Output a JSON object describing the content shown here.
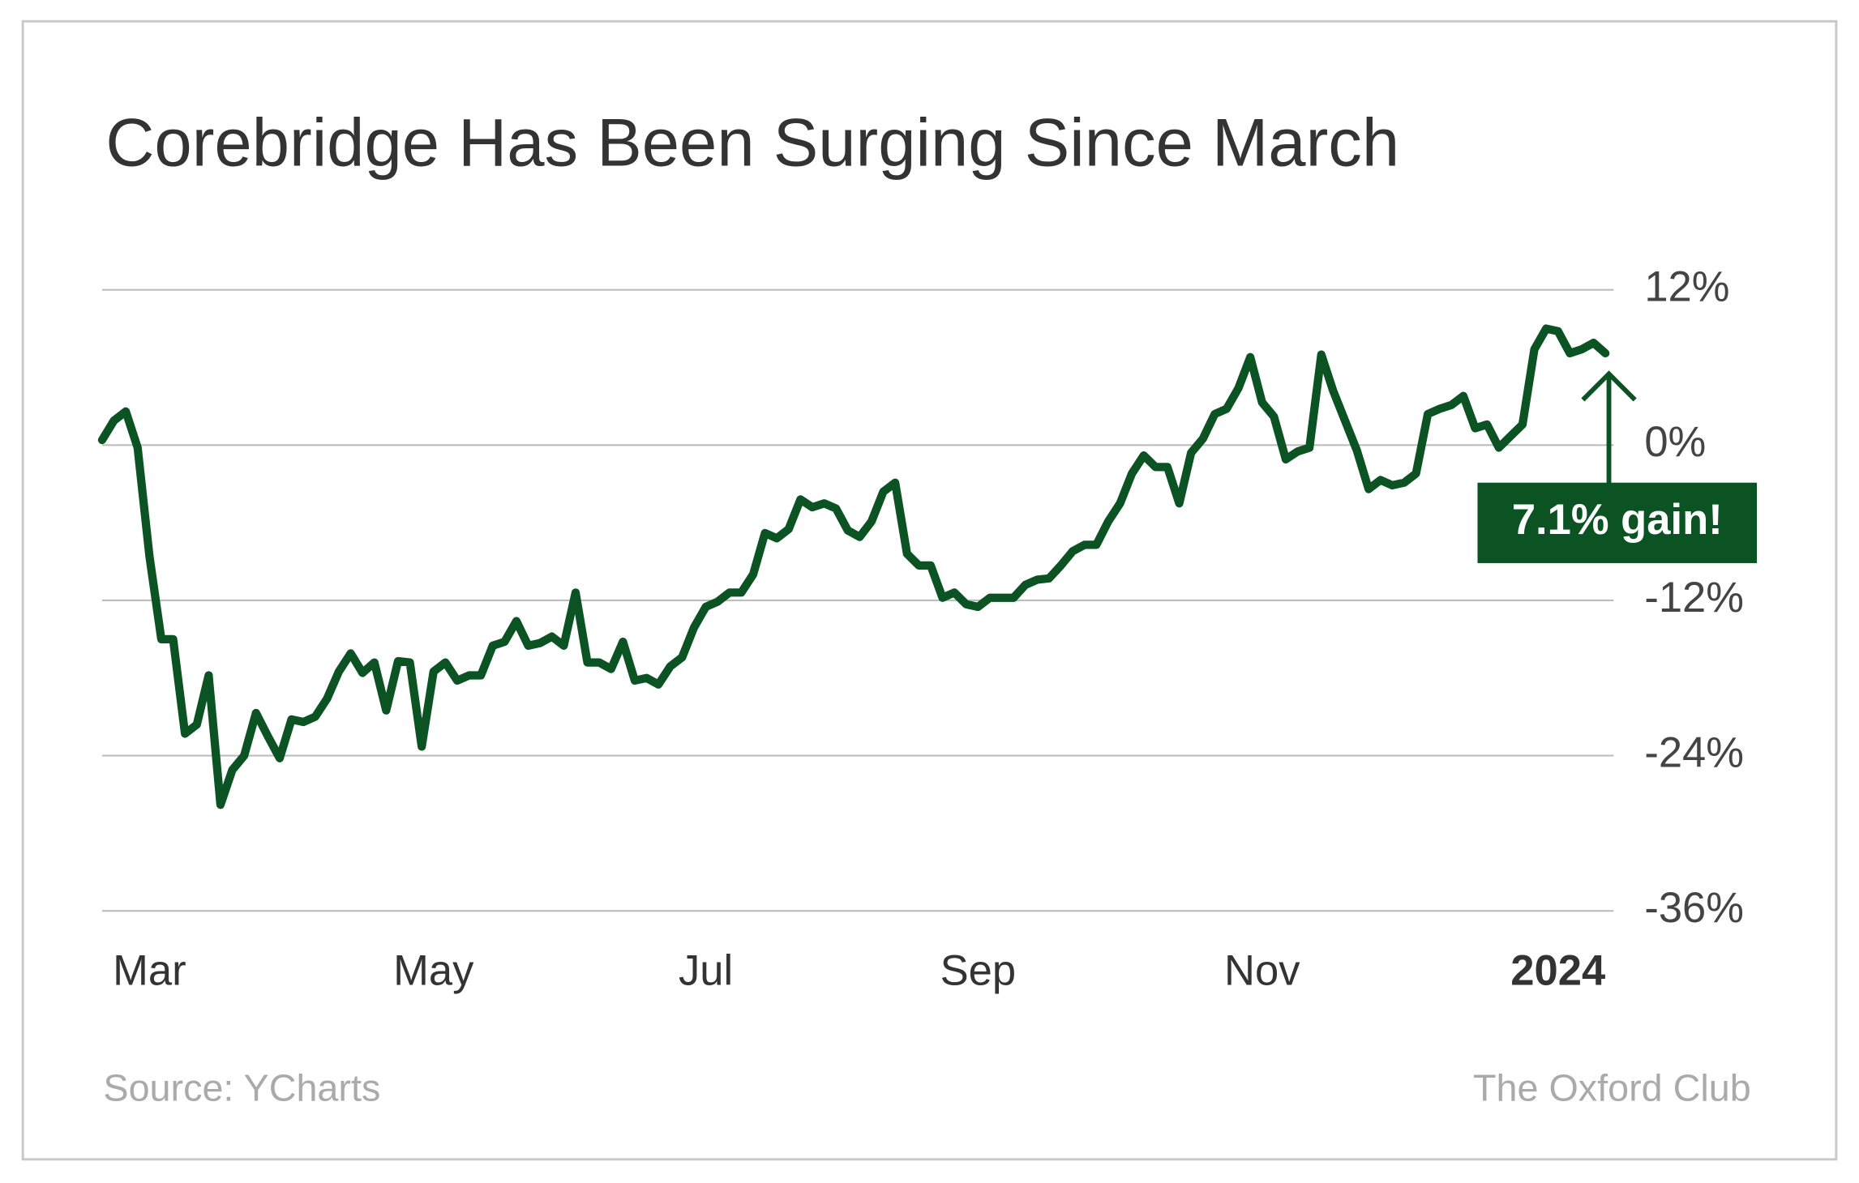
{
  "chart_data": {
    "type": "line",
    "title": "Corebridge Has Been Surging Since March",
    "source": "Source: YCharts",
    "credit": "The Oxford Club",
    "annotation": "7.1% gain!",
    "categories": [
      null,
      null,
      null,
      null,
      "Mar",
      null,
      null,
      null,
      null,
      null,
      null,
      null,
      null,
      null,
      null,
      null,
      null,
      null,
      null,
      null,
      null,
      null,
      null,
      null,
      null,
      null,
      null,
      null,
      "May",
      null,
      null,
      null,
      null,
      null,
      null,
      null,
      null,
      null,
      null,
      null,
      null,
      null,
      null,
      null,
      null,
      null,
      null,
      null,
      null,
      null,
      null,
      "Jul",
      null,
      null,
      null,
      null,
      null,
      null,
      null,
      null,
      null,
      null,
      null,
      null,
      null,
      null,
      null,
      null,
      null,
      null,
      null,
      null,
      null,
      null,
      "Sep",
      null,
      null,
      null,
      null,
      null,
      null,
      null,
      null,
      null,
      null,
      null,
      null,
      null,
      null,
      null,
      null,
      null,
      null,
      null,
      null,
      null,
      null,
      null,
      "Nov",
      null,
      null,
      null,
      null,
      null,
      null,
      null,
      null,
      null,
      null,
      null,
      null,
      null,
      null,
      null,
      null,
      null,
      null,
      null,
      null,
      null,
      null,
      null,
      null,
      "2024",
      null,
      null,
      null,
      null
    ],
    "series": [
      {
        "name": "Corebridge",
        "color": "#0b5323",
        "values": [
          0.4,
          1.9,
          2.6,
          -0.2,
          -8.6,
          -15.0,
          -15.0,
          -22.3,
          -21.6,
          -17.8,
          -27.8,
          -25.1,
          -24.0,
          -20.7,
          -22.5,
          -24.2,
          -21.2,
          -21.4,
          -21.0,
          -19.6,
          -17.5,
          -16.1,
          -17.6,
          -16.8,
          -20.5,
          -16.7,
          -16.8,
          -23.3,
          -17.5,
          -16.8,
          -18.2,
          -17.8,
          -17.8,
          -15.5,
          -15.2,
          -13.6,
          -15.5,
          -15.3,
          -14.8,
          -15.5,
          -11.4,
          -16.8,
          -16.8,
          -17.3,
          -15.2,
          -18.2,
          -18.0,
          -18.5,
          -17.1,
          -16.4,
          -14.1,
          -12.5,
          -12.1,
          -11.4,
          -11.4,
          -10.0,
          -6.8,
          -7.2,
          -6.5,
          -4.2,
          -4.8,
          -4.5,
          -4.9,
          -6.6,
          -7.1,
          -5.9,
          -3.6,
          -2.9,
          -8.4,
          -9.3,
          -9.3,
          -11.8,
          -11.4,
          -12.3,
          -12.5,
          -11.8,
          -11.8,
          -11.8,
          -10.8,
          -10.4,
          -10.3,
          -9.3,
          -8.2,
          -7.7,
          -7.7,
          -5.9,
          -4.5,
          -2.2,
          -0.8,
          -1.7,
          -1.7,
          -4.5,
          -0.6,
          0.5,
          2.4,
          2.8,
          4.4,
          6.8,
          3.3,
          2.2,
          -1.1,
          -0.5,
          -0.2,
          7.0,
          4.2,
          1.9,
          -0.4,
          -3.4,
          -2.7,
          -3.1,
          -2.9,
          -2.2,
          2.4,
          2.8,
          3.1,
          3.8,
          1.3,
          1.6,
          -0.2,
          0.7,
          1.6,
          7.4,
          9.0,
          8.8,
          7.1,
          7.4,
          7.9,
          7.1
        ]
      }
    ],
    "ylim": [
      -36,
      12
    ],
    "yticks": [
      {
        "value": 12,
        "label": "12%"
      },
      {
        "value": 0,
        "label": "0%"
      },
      {
        "value": -12,
        "label": "-12%"
      },
      {
        "value": -24,
        "label": "-24%"
      },
      {
        "value": -36,
        "label": "-36%"
      }
    ],
    "grid": true
  }
}
